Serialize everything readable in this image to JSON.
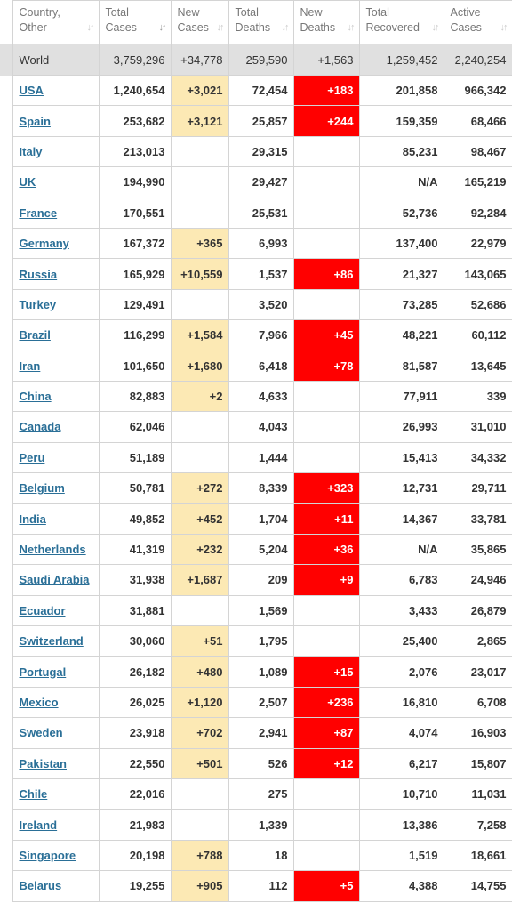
{
  "columns": [
    {
      "label": "Country, Other"
    },
    {
      "label": "Total Cases"
    },
    {
      "label": "New Cases"
    },
    {
      "label": "Total Deaths"
    },
    {
      "label": "New Deaths"
    },
    {
      "label": "Total Recovered"
    },
    {
      "label": "Active Cases"
    }
  ],
  "world": {
    "name": "World",
    "total_cases": "3,759,296",
    "new_cases": "+34,778",
    "total_deaths": "259,590",
    "new_deaths": "+1,563",
    "total_recovered": "1,259,452",
    "active_cases": "2,240,254"
  },
  "rows": [
    {
      "name": "USA",
      "total_cases": "1,240,654",
      "new_cases": "+3,021",
      "total_deaths": "72,454",
      "new_deaths": "+183",
      "total_recovered": "201,858",
      "active_cases": "966,342"
    },
    {
      "name": "Spain",
      "total_cases": "253,682",
      "new_cases": "+3,121",
      "total_deaths": "25,857",
      "new_deaths": "+244",
      "total_recovered": "159,359",
      "active_cases": "68,466"
    },
    {
      "name": "Italy",
      "total_cases": "213,013",
      "new_cases": "",
      "total_deaths": "29,315",
      "new_deaths": "",
      "total_recovered": "85,231",
      "active_cases": "98,467"
    },
    {
      "name": "UK",
      "total_cases": "194,990",
      "new_cases": "",
      "total_deaths": "29,427",
      "new_deaths": "",
      "total_recovered": "N/A",
      "active_cases": "165,219"
    },
    {
      "name": "France",
      "total_cases": "170,551",
      "new_cases": "",
      "total_deaths": "25,531",
      "new_deaths": "",
      "total_recovered": "52,736",
      "active_cases": "92,284"
    },
    {
      "name": "Germany",
      "total_cases": "167,372",
      "new_cases": "+365",
      "total_deaths": "6,993",
      "new_deaths": "",
      "total_recovered": "137,400",
      "active_cases": "22,979"
    },
    {
      "name": "Russia",
      "total_cases": "165,929",
      "new_cases": "+10,559",
      "total_deaths": "1,537",
      "new_deaths": "+86",
      "total_recovered": "21,327",
      "active_cases": "143,065"
    },
    {
      "name": "Turkey",
      "total_cases": "129,491",
      "new_cases": "",
      "total_deaths": "3,520",
      "new_deaths": "",
      "total_recovered": "73,285",
      "active_cases": "52,686"
    },
    {
      "name": "Brazil",
      "total_cases": "116,299",
      "new_cases": "+1,584",
      "total_deaths": "7,966",
      "new_deaths": "+45",
      "total_recovered": "48,221",
      "active_cases": "60,112"
    },
    {
      "name": "Iran",
      "total_cases": "101,650",
      "new_cases": "+1,680",
      "total_deaths": "6,418",
      "new_deaths": "+78",
      "total_recovered": "81,587",
      "active_cases": "13,645"
    },
    {
      "name": "China",
      "total_cases": "82,883",
      "new_cases": "+2",
      "total_deaths": "4,633",
      "new_deaths": "",
      "total_recovered": "77,911",
      "active_cases": "339"
    },
    {
      "name": "Canada",
      "total_cases": "62,046",
      "new_cases": "",
      "total_deaths": "4,043",
      "new_deaths": "",
      "total_recovered": "26,993",
      "active_cases": "31,010"
    },
    {
      "name": "Peru",
      "total_cases": "51,189",
      "new_cases": "",
      "total_deaths": "1,444",
      "new_deaths": "",
      "total_recovered": "15,413",
      "active_cases": "34,332"
    },
    {
      "name": "Belgium",
      "total_cases": "50,781",
      "new_cases": "+272",
      "total_deaths": "8,339",
      "new_deaths": "+323",
      "total_recovered": "12,731",
      "active_cases": "29,711"
    },
    {
      "name": "India",
      "total_cases": "49,852",
      "new_cases": "+452",
      "total_deaths": "1,704",
      "new_deaths": "+11",
      "total_recovered": "14,367",
      "active_cases": "33,781"
    },
    {
      "name": "Netherlands",
      "total_cases": "41,319",
      "new_cases": "+232",
      "total_deaths": "5,204",
      "new_deaths": "+36",
      "total_recovered": "N/A",
      "active_cases": "35,865"
    },
    {
      "name": "Saudi Arabia",
      "total_cases": "31,938",
      "new_cases": "+1,687",
      "total_deaths": "209",
      "new_deaths": "+9",
      "total_recovered": "6,783",
      "active_cases": "24,946"
    },
    {
      "name": "Ecuador",
      "total_cases": "31,881",
      "new_cases": "",
      "total_deaths": "1,569",
      "new_deaths": "",
      "total_recovered": "3,433",
      "active_cases": "26,879"
    },
    {
      "name": "Switzerland",
      "total_cases": "30,060",
      "new_cases": "+51",
      "total_deaths": "1,795",
      "new_deaths": "",
      "total_recovered": "25,400",
      "active_cases": "2,865"
    },
    {
      "name": "Portugal",
      "total_cases": "26,182",
      "new_cases": "+480",
      "total_deaths": "1,089",
      "new_deaths": "+15",
      "total_recovered": "2,076",
      "active_cases": "23,017"
    },
    {
      "name": "Mexico",
      "total_cases": "26,025",
      "new_cases": "+1,120",
      "total_deaths": "2,507",
      "new_deaths": "+236",
      "total_recovered": "16,810",
      "active_cases": "6,708"
    },
    {
      "name": "Sweden",
      "total_cases": "23,918",
      "new_cases": "+702",
      "total_deaths": "2,941",
      "new_deaths": "+87",
      "total_recovered": "4,074",
      "active_cases": "16,903"
    },
    {
      "name": "Pakistan",
      "total_cases": "22,550",
      "new_cases": "+501",
      "total_deaths": "526",
      "new_deaths": "+12",
      "total_recovered": "6,217",
      "active_cases": "15,807"
    },
    {
      "name": "Chile",
      "total_cases": "22,016",
      "new_cases": "",
      "total_deaths": "275",
      "new_deaths": "",
      "total_recovered": "10,710",
      "active_cases": "11,031"
    },
    {
      "name": "Ireland",
      "total_cases": "21,983",
      "new_cases": "",
      "total_deaths": "1,339",
      "new_deaths": "",
      "total_recovered": "13,386",
      "active_cases": "7,258"
    },
    {
      "name": "Singapore",
      "total_cases": "20,198",
      "new_cases": "+788",
      "total_deaths": "18",
      "new_deaths": "",
      "total_recovered": "1,519",
      "active_cases": "18,661"
    },
    {
      "name": "Belarus",
      "total_cases": "19,255",
      "new_cases": "+905",
      "total_deaths": "112",
      "new_deaths": "+5",
      "total_recovered": "4,388",
      "active_cases": "14,755"
    }
  ]
}
